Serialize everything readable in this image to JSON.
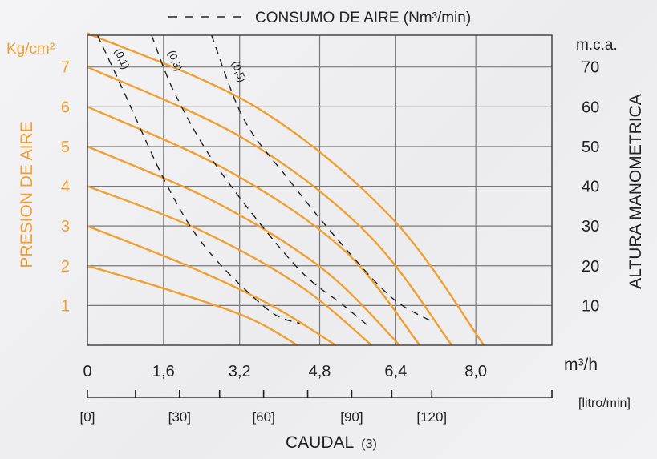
{
  "colors": {
    "curve": "#f0a030",
    "left_axis_text": "#f0a030",
    "grid": "#777777",
    "dashed": "#222222",
    "text": "#222222"
  },
  "chart_data": {
    "type": "line",
    "legend_text": "CONSUMO DE AIRE (Nm³/min)",
    "xlabel_main": "CAUDAL",
    "xlabel_note": "(3)",
    "xlabel_unit": "m³/h",
    "xlabel_secondary_unit": "[litro/min]",
    "ylabel_left": "PRESION DE AIRE",
    "ylabel_left_unit": "Kg/cm²",
    "ylabel_right": "ALTURA MANOMETRICA",
    "ylabel_right_unit": "m.c.a.",
    "xlim": [
      0,
      11.6
    ],
    "ylim": [
      0,
      7.8
    ],
    "grid": true,
    "x_ticks": [
      {
        "value": 0,
        "label": "0"
      },
      {
        "value": 1.9,
        "label": "1,6"
      },
      {
        "value": 3.8,
        "label": "3,2"
      },
      {
        "value": 5.8,
        "label": "4,8"
      },
      {
        "value": 7.7,
        "label": "6,4"
      },
      {
        "value": 9.7,
        "label": "8,0"
      }
    ],
    "x_grid": [
      1.9,
      3.8,
      5.8,
      7.7,
      9.7
    ],
    "y_ticks_left": [
      1,
      2,
      3,
      4,
      5,
      6,
      7
    ],
    "y_tick_labels_left": [
      "1",
      "2",
      "3",
      "4",
      "5",
      "6",
      "7"
    ],
    "y_ticks_right": [
      1,
      2,
      3,
      4,
      5,
      6,
      7
    ],
    "y_tick_labels_right": [
      "10",
      "20",
      "30",
      "40",
      "50",
      "60",
      "70"
    ],
    "secondary_ticks": [
      {
        "value": 0,
        "label": "[0]"
      },
      {
        "value": 2.3,
        "label": "[30]"
      },
      {
        "value": 4.4,
        "label": "[60]"
      },
      {
        "value": 6.6,
        "label": "[90]"
      },
      {
        "value": 8.6,
        "label": "[120]"
      }
    ],
    "secondary_tick_extra": [
      1.2,
      3.3,
      5.5,
      7.6,
      11.6
    ],
    "series": [
      {
        "values": [
          [
            0,
            2.0
          ],
          [
            2.0,
            1.4
          ],
          [
            4.0,
            0.7
          ],
          [
            5.25,
            0
          ]
        ]
      },
      {
        "values": [
          [
            0,
            3.0
          ],
          [
            2.5,
            2.0
          ],
          [
            4.6,
            1.0
          ],
          [
            6.2,
            0
          ]
        ]
      },
      {
        "values": [
          [
            0,
            4.0
          ],
          [
            2.8,
            2.9
          ],
          [
            5.3,
            1.5
          ],
          [
            7.1,
            0
          ]
        ]
      },
      {
        "values": [
          [
            0,
            5.0
          ],
          [
            3.2,
            3.6
          ],
          [
            5.9,
            1.9
          ],
          [
            7.8,
            0
          ]
        ]
      },
      {
        "values": [
          [
            0,
            6.0
          ],
          [
            3.5,
            4.4
          ],
          [
            6.4,
            2.4
          ],
          [
            8.3,
            0
          ]
        ]
      },
      {
        "values": [
          [
            0,
            7.0
          ],
          [
            3.9,
            5.2
          ],
          [
            7.0,
            2.8
          ],
          [
            9.1,
            0
          ]
        ]
      },
      {
        "values": [
          [
            0,
            7.85
          ],
          [
            4.2,
            6.0
          ],
          [
            7.6,
            3.2
          ],
          [
            9.9,
            0
          ]
        ]
      }
    ],
    "air_consumption": [
      {
        "label": "(0,1)",
        "values": [
          [
            0.25,
            7.8
          ],
          [
            0.9,
            6.4
          ],
          [
            2.0,
            4.0
          ],
          [
            3.0,
            2.4
          ],
          [
            4.5,
            0.9
          ],
          [
            5.3,
            0.55
          ]
        ]
      },
      {
        "label": "(0,3)",
        "values": [
          [
            1.6,
            7.8
          ],
          [
            2.2,
            6.3
          ],
          [
            3.3,
            4.4
          ],
          [
            5.2,
            2.0
          ],
          [
            6.4,
            1.0
          ],
          [
            7.0,
            0.5
          ]
        ]
      },
      {
        "label": "(0,5)",
        "values": [
          [
            3.1,
            7.8
          ],
          [
            3.9,
            5.7
          ],
          [
            5.0,
            4.2
          ],
          [
            6.3,
            2.6
          ],
          [
            7.6,
            1.2
          ],
          [
            8.6,
            0.6
          ]
        ]
      }
    ]
  }
}
